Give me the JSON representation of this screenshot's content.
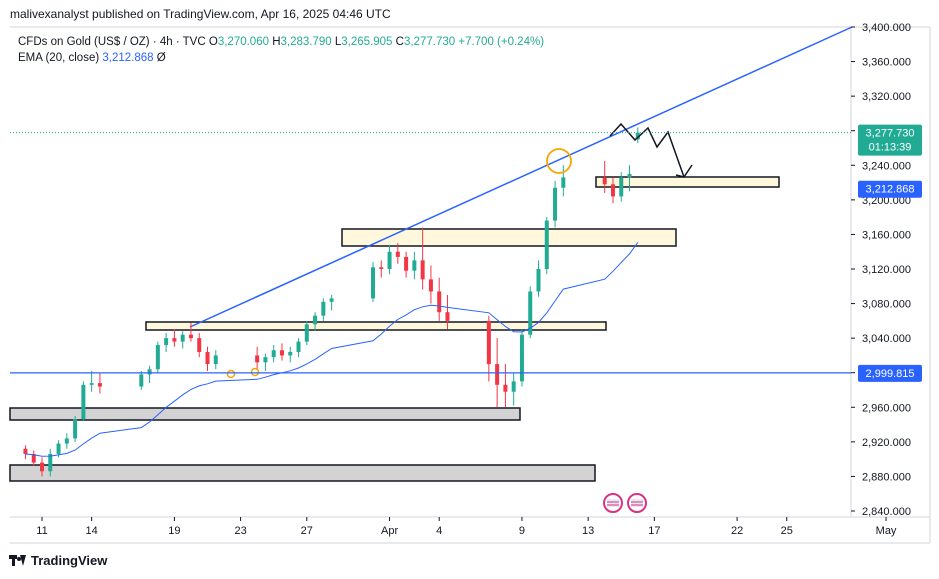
{
  "header": {
    "published_text": "malivexanalyst published on TradingView.com, Apr 16, 2025 04:46 UTC"
  },
  "legend": {
    "symbol": "CFDs on Gold (US$ / OZ) · 4h · TVC",
    "open_key": "O",
    "open": "3,270.060",
    "high_key": "H",
    "high": "3,283.790",
    "low_key": "L",
    "low": "3,265.905",
    "close_key": "C",
    "close": "3,277.730",
    "change": "+7.700 (+0.24%)",
    "ema_label": "EMA (20, close)",
    "ema_value": "3,212.868",
    "ema_zero": "Ø"
  },
  "footer": {
    "brand": "TradingView"
  },
  "colors": {
    "up": "#22ab94",
    "down": "#f23645",
    "ema": "#2962ff",
    "trendline": "#2962ff",
    "zone_fill_light": "#fff8dc",
    "zone_fill_gray": "#d3d3d3",
    "price_tag": "#22ab94",
    "level_tag": "#2962ff",
    "highlight_circle": "#f7a600"
  },
  "chart_data": {
    "type": "candlestick",
    "symbol": "CFDs on Gold (US$ / OZ)",
    "interval": "4h",
    "ylim": [
      2840,
      3400
    ],
    "y_ticks": [
      3400,
      3360,
      3320,
      3280,
      3240,
      3200,
      3160,
      3120,
      3080,
      3040,
      3000,
      2960,
      2920,
      2880,
      2840
    ],
    "y_tick_labels": [
      "3,400.000",
      "3,360.000",
      "3,320.000",
      "3,280.000",
      "3,240.000",
      "3,200.000",
      "3,160.000",
      "3,120.000",
      "3,080.000",
      "3,040.000",
      "3,000.000",
      "2,960.000",
      "2,920.000",
      "2,880.000",
      "2,840.000"
    ],
    "x_ticks": [
      "2025-03-11",
      "2025-03-14",
      "2025-03-19",
      "2025-03-23",
      "2025-03-27",
      "2025-04-01",
      "2025-04-04",
      "2025-04-09",
      "2025-04-13",
      "2025-04-17",
      "2025-04-22",
      "2025-04-25",
      "2025-05-01"
    ],
    "x_tick_labels": [
      "11",
      "14",
      "19",
      "23",
      "27",
      "Apr",
      "4",
      "9",
      "13",
      "17",
      "22",
      "25",
      "May"
    ],
    "grid": false,
    "series": [
      {
        "name": "Gold 4h",
        "kind": "candles",
        "candles": [
          [
            "2025-03-10",
            2912,
            2916,
            2900,
            2906
          ],
          [
            "2025-03-10T12:00",
            2906,
            2910,
            2892,
            2896
          ],
          [
            "2025-03-11",
            2896,
            2902,
            2880,
            2886
          ],
          [
            "2025-03-11T12:00",
            2886,
            2912,
            2880,
            2906
          ],
          [
            "2025-03-12",
            2906,
            2922,
            2902,
            2918
          ],
          [
            "2025-03-12T12:00",
            2918,
            2930,
            2912,
            2924
          ],
          [
            "2025-03-13",
            2924,
            2950,
            2920,
            2946
          ],
          [
            "2025-03-13T12:00",
            2946,
            2990,
            2944,
            2986
          ],
          [
            "2025-03-14",
            2986,
            3002,
            2978,
            2988
          ],
          [
            "2025-03-14T12:00",
            2988,
            3000,
            2976,
            2984
          ],
          [
            "2025-03-17",
            2984,
            3002,
            2980,
            2998
          ],
          [
            "2025-03-17T12:00",
            2998,
            3008,
            2988,
            3004
          ],
          [
            "2025-03-18",
            3004,
            3036,
            3000,
            3032
          ],
          [
            "2025-03-18T12:00",
            3032,
            3046,
            3024,
            3040
          ],
          [
            "2025-03-19",
            3040,
            3050,
            3030,
            3036
          ],
          [
            "2025-03-19T12:00",
            3036,
            3048,
            3028,
            3044
          ],
          [
            "2025-03-20",
            3044,
            3058,
            3036,
            3040
          ],
          [
            "2025-03-20T12:00",
            3040,
            3046,
            3018,
            3024
          ],
          [
            "2025-03-21",
            3024,
            3030,
            3002,
            3010
          ],
          [
            "2025-03-21T12:00",
            3010,
            3026,
            3004,
            3020
          ],
          [
            "2025-03-24",
            3020,
            3030,
            3004,
            3012
          ],
          [
            "2025-03-24T12:00",
            3012,
            3022,
            3002,
            3018
          ],
          [
            "2025-03-25",
            3018,
            3032,
            3012,
            3026
          ],
          [
            "2025-03-25T12:00",
            3026,
            3034,
            3014,
            3020
          ],
          [
            "2025-03-26",
            3020,
            3030,
            3012,
            3024
          ],
          [
            "2025-03-26T12:00",
            3024,
            3040,
            3018,
            3036
          ],
          [
            "2025-03-27",
            3036,
            3060,
            3032,
            3056
          ],
          [
            "2025-03-27T12:00",
            3056,
            3070,
            3048,
            3066
          ],
          [
            "2025-03-28",
            3066,
            3086,
            3060,
            3082
          ],
          [
            "2025-03-28T12:00",
            3082,
            3090,
            3072,
            3086
          ],
          [
            "2025-03-31",
            3086,
            3128,
            3082,
            3122
          ],
          [
            "2025-03-31T12:00",
            3122,
            3130,
            3110,
            3120
          ],
          [
            "2025-04-01",
            3120,
            3148,
            3114,
            3140
          ],
          [
            "2025-04-01T12:00",
            3140,
            3150,
            3126,
            3134
          ],
          [
            "2025-04-02",
            3134,
            3140,
            3110,
            3118
          ],
          [
            "2025-04-02T12:00",
            3118,
            3140,
            3108,
            3130
          ],
          [
            "2025-04-03",
            3130,
            3168,
            3096,
            3108
          ],
          [
            "2025-04-03T12:00",
            3108,
            3124,
            3080,
            3094
          ],
          [
            "2025-04-04",
            3094,
            3110,
            3060,
            3070
          ],
          [
            "2025-04-04T12:00",
            3070,
            3090,
            3050,
            3060
          ],
          [
            "2025-04-07",
            3060,
            3066,
            2990,
            3010
          ],
          [
            "2025-04-07T12:00",
            3010,
            3040,
            2960,
            2986
          ],
          [
            "2025-04-08",
            2986,
            3010,
            2960,
            2978
          ],
          [
            "2025-04-08T12:00",
            2978,
            3000,
            2962,
            2990
          ],
          [
            "2025-04-09",
            2990,
            3050,
            2984,
            3044
          ],
          [
            "2025-04-09T12:00",
            3044,
            3100,
            3040,
            3094
          ],
          [
            "2025-04-10",
            3094,
            3130,
            3088,
            3120
          ],
          [
            "2025-04-10T12:00",
            3120,
            3180,
            3114,
            3176
          ],
          [
            "2025-04-11",
            3176,
            3222,
            3168,
            3214
          ],
          [
            "2025-04-11T12:00",
            3214,
            3240,
            3204,
            3226
          ],
          [
            "2025-04-14",
            3226,
            3245,
            3208,
            3218
          ],
          [
            "2025-04-14T12:00",
            3218,
            3226,
            3196,
            3204
          ],
          [
            "2025-04-15",
            3204,
            3232,
            3198,
            3226
          ],
          [
            "2025-04-15T12:00",
            3226,
            3240,
            3210,
            3230
          ],
          [
            "2025-04-16",
            3270.06,
            3283.79,
            3265.905,
            3277.73
          ]
        ]
      },
      {
        "name": "EMA (20, close)",
        "kind": "line",
        "value_last": 3212.868
      }
    ],
    "horizontal_line": {
      "value": 2999.815,
      "label": "2,999.815"
    },
    "last_price": {
      "value": 3277.73,
      "label": "3,277.730",
      "countdown": "01:13:39"
    },
    "ema_tag": {
      "value": 3212.868,
      "label": "3,212.868"
    }
  }
}
